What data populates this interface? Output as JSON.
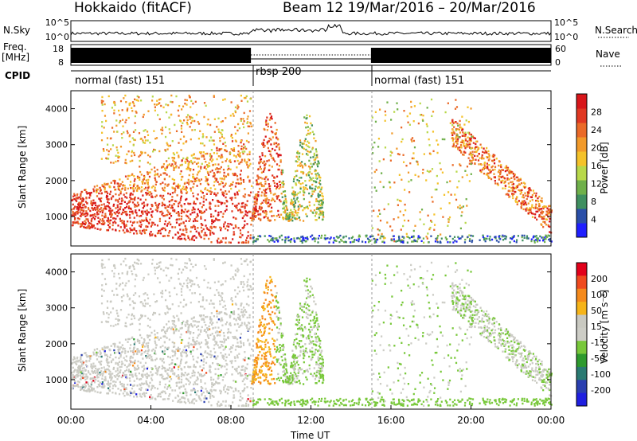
{
  "header": {
    "station": "Hokkaido (fitACF)",
    "beam_date": "Beam 12  19/Mar/2016 – 20/Mar/2016"
  },
  "side_labels": {
    "nsky": "N.Sky",
    "freq": "Freq.",
    "mhz": "[MHz]",
    "cpid": "CPID",
    "nsearch": "N.Search",
    "nave": "Nave"
  },
  "cpid_segments": [
    {
      "label": "normal (fast) 151",
      "start_hr": 0,
      "end_hr": 9
    },
    {
      "label": "rbsp 200",
      "start_hr": 9,
      "end_hr": 15
    },
    {
      "label": "normal (fast) 151",
      "start_hr": 15,
      "end_hr": 24
    }
  ],
  "colors": {
    "power_scale": [
      "#1f1fff",
      "#2a4fa8",
      "#3f8f60",
      "#6fb04a",
      "#b8d84a",
      "#f4c22a",
      "#f29a2a",
      "#ea6a28",
      "#e03822",
      "#d8161a"
    ],
    "velocity_scale": [
      "#e2001a",
      "#f04a1e",
      "#f58a1c",
      "#f6b419",
      "#c9c9c1",
      "#cdcdc6",
      "#78c83a",
      "#2e9a2e",
      "#2a7a72",
      "#2a3fb0",
      "#1f1fe0"
    ]
  },
  "chart_data": [
    {
      "type": "line",
      "title": "N.Sky / N.Search",
      "x_label": "Time UT",
      "x_ticks": [
        "00:00",
        "04:00",
        "08:00",
        "12:00",
        "16:00",
        "20:00",
        "00:00"
      ],
      "xlim_hours": [
        0,
        24
      ],
      "left_axis": {
        "label": "N.Sky",
        "ticks": [
          "10^5",
          "10^0"
        ]
      },
      "right_axis": {
        "label": "N.Search",
        "ticks": [
          "10^5",
          "10^0"
        ]
      }
    },
    {
      "type": "line",
      "title": "Freq. / Nave",
      "left_axis": {
        "label": "Freq. [MHz]",
        "range": [
          8,
          18
        ],
        "ticks": [
          "18",
          "8"
        ]
      },
      "right_axis": {
        "label": "Nave",
        "range": [
          0,
          60
        ],
        "ticks": [
          "60",
          "0"
        ]
      },
      "frequency_segments": [
        {
          "start_hr": 0,
          "end_hr": 9,
          "style": "solid block"
        },
        {
          "start_hr": 9,
          "end_hr": 15,
          "style": "dotted"
        },
        {
          "start_hr": 15,
          "end_hr": 24,
          "style": "solid block"
        }
      ]
    },
    {
      "type": "heatmap",
      "title": "Power",
      "ylabel": "Slant Range [km]",
      "y_ticks": [
        "1000",
        "2000",
        "3000",
        "4000"
      ],
      "ylim_km": [
        180,
        4500
      ],
      "colorbar": {
        "label": "Power [dB]",
        "ticks": [
          "4",
          "8",
          "12",
          "16",
          "20",
          "24",
          "28"
        ],
        "range": [
          0,
          30
        ]
      },
      "grid": false
    },
    {
      "type": "heatmap",
      "title": "Velocity",
      "ylabel": "Slant Range [km]",
      "y_ticks": [
        "1000",
        "2000",
        "3000",
        "4000"
      ],
      "ylim_km": [
        180,
        4500
      ],
      "colorbar": {
        "label": "Velocity [m s⁻¹]",
        "ticks": [
          "200",
          "100",
          "50",
          "15",
          "-15",
          "-50",
          "-100",
          "-200"
        ]
      },
      "x_ticks": [
        "00:00",
        "04:00",
        "08:00",
        "12:00",
        "16:00",
        "20:00",
        "00:00"
      ],
      "xlabel": "Time UT",
      "grid": false
    }
  ]
}
